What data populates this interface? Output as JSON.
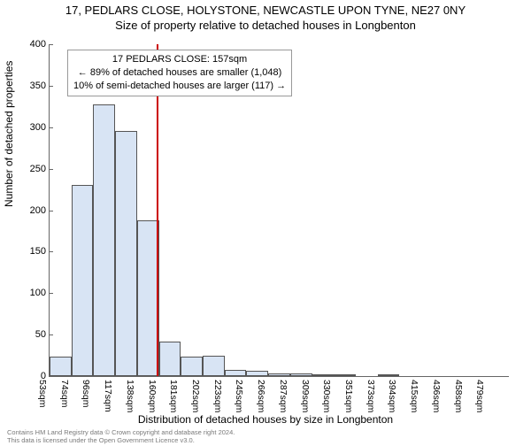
{
  "title": "17, PEDLARS CLOSE, HOLYSTONE, NEWCASTLE UPON TYNE, NE27 0NY",
  "subtitle": "Size of property relative to detached houses in Longbenton",
  "ylabel": "Number of detached properties",
  "xlabel": "Distribution of detached houses by size in Longbenton",
  "chart": {
    "type": "histogram",
    "ylim": [
      0,
      400
    ],
    "yticks": [
      0,
      50,
      100,
      150,
      200,
      250,
      300,
      350,
      400
    ],
    "xticks_sqm": [
      53,
      74,
      96,
      117,
      138,
      160,
      181,
      202,
      223,
      245,
      266,
      287,
      309,
      330,
      351,
      373,
      394,
      415,
      436,
      458,
      479
    ],
    "categories": [
      "53sqm",
      "74sqm",
      "96sqm",
      "117sqm",
      "138sqm",
      "160sqm",
      "181sqm",
      "202sqm",
      "223sqm",
      "245sqm",
      "266sqm",
      "287sqm",
      "309sqm",
      "330sqm",
      "351sqm",
      "373sqm",
      "394sqm",
      "415sqm",
      "436sqm",
      "458sqm",
      "479sqm"
    ],
    "values": [
      23,
      230,
      328,
      296,
      188,
      42,
      24,
      25,
      7,
      6,
      3,
      3,
      2,
      1,
      0,
      1,
      0,
      0,
      0,
      0,
      0
    ],
    "bar_fill": "#d8e4f4",
    "bar_stroke": "#555555",
    "background": "#ffffff",
    "axis_color": "#666666",
    "marker_value": 157,
    "marker_color": "#cc0000",
    "tick_fontsize": 11,
    "label_fontsize": 12
  },
  "annotation": {
    "line1": "17 PEDLARS CLOSE: 157sqm",
    "line2": "← 89% of detached houses are smaller (1,048)",
    "line3": "10% of semi-detached houses are larger (117) →"
  },
  "footer": {
    "line1": "Contains HM Land Registry data © Crown copyright and database right 2024.",
    "line2": "This data is licensed under the Open Government Licence v3.0."
  }
}
